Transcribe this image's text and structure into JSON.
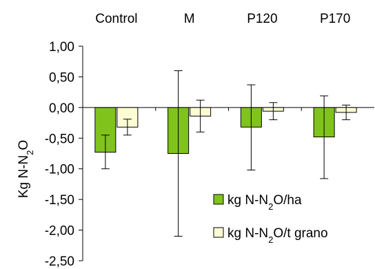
{
  "chart_data": {
    "type": "bar",
    "categories": [
      "Control",
      "M",
      "P120",
      "P170"
    ],
    "category_label_position": "top",
    "ylabel": "Kg N-N₂O",
    "ylim": [
      -2.5,
      1.0
    ],
    "yticks": [
      "1,00",
      "0,50",
      "0,00",
      "-0,50",
      "-1,00",
      "-1,50",
      "-2,00",
      "-2,50"
    ],
    "ytick_values": [
      1.0,
      0.5,
      0.0,
      -0.5,
      -1.0,
      -1.5,
      -2.0,
      -2.5
    ],
    "grid": false,
    "legend_position": "bottom-right",
    "series": [
      {
        "name": "kg N-N₂O/ha",
        "color": "#80c31c",
        "values": [
          -0.73,
          -0.75,
          -0.32,
          -0.48
        ],
        "error_low": [
          -1.0,
          -2.1,
          -1.02,
          -1.16
        ],
        "error_high": [
          -0.45,
          0.6,
          0.37,
          0.19
        ]
      },
      {
        "name": "kg N-N₂O/t grano",
        "color": "#fdfdd3",
        "values": [
          -0.32,
          -0.14,
          -0.06,
          -0.08
        ],
        "error_low": [
          -0.45,
          -0.4,
          -0.2,
          -0.2
        ],
        "error_high": [
          -0.19,
          0.12,
          0.08,
          0.04
        ]
      }
    ]
  }
}
